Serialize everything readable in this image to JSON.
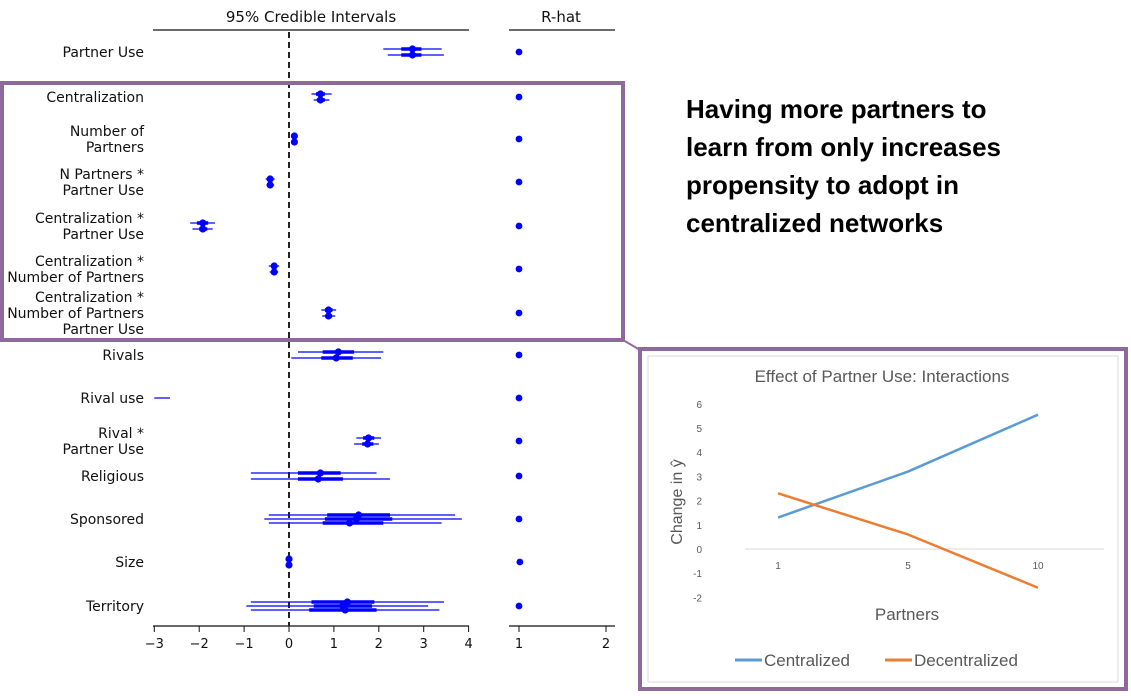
{
  "callout": {
    "line1": "Having more partners to",
    "line2": "learn from only increases",
    "line3": "propensity to adopt in",
    "line4": "centralized networks"
  },
  "chart_data": [
    {
      "type": "forest",
      "panel_title": "95% Credible Intervals",
      "xlim": [
        -3,
        4.2
      ],
      "xticks": [
        "−3",
        "−2",
        "−1",
        "0",
        "1",
        "2",
        "3",
        "4"
      ],
      "xtick_values": [
        -3,
        -2,
        -1,
        0,
        1,
        2,
        3,
        4
      ],
      "reference_line": 0,
      "marker_color": "#0000ff",
      "rows": [
        {
          "label": [
            "Partner Use"
          ],
          "ci": [
            [
              2.1,
              3.4
            ],
            [
              2.2,
              3.45
            ]
          ],
          "iqr": [
            [
              2.5,
              2.95
            ],
            [
              2.5,
              2.95
            ]
          ],
          "means": [
            2.75,
            2.75
          ]
        },
        {
          "label": [
            "Centralization"
          ],
          "ci": [
            [
              0.5,
              0.95
            ],
            [
              0.55,
              0.9
            ]
          ],
          "iqr": [
            [
              0.6,
              0.8
            ],
            [
              0.62,
              0.8
            ]
          ],
          "means": [
            0.7,
            0.7
          ]
        },
        {
          "label": [
            "Number of",
            "Partners"
          ],
          "ci": [
            [
              0.05,
              0.18
            ],
            [
              0.07,
              0.17
            ]
          ],
          "iqr": [
            [
              0.08,
              0.15
            ],
            [
              0.09,
              0.15
            ]
          ],
          "means": [
            0.12,
            0.12
          ]
        },
        {
          "label": [
            "N Partners *",
            "Partner Use"
          ],
          "ci": [
            [
              -0.52,
              -0.32
            ],
            [
              -0.5,
              -0.33
            ]
          ],
          "iqr": [
            [
              -0.47,
              -0.37
            ],
            [
              -0.46,
              -0.38
            ]
          ],
          "means": [
            -0.42,
            -0.42
          ]
        },
        {
          "label": [
            "Centralization *",
            "Partner Use"
          ],
          "ci": [
            [
              -2.2,
              -1.65
            ],
            [
              -2.15,
              -1.7
            ]
          ],
          "iqr": [
            [
              -2.05,
              -1.8
            ],
            [
              -2.0,
              -1.82
            ]
          ],
          "means": [
            -1.92,
            -1.92
          ]
        },
        {
          "label": [
            "Centralization *",
            "Number of Partners"
          ],
          "ci": [
            [
              -0.45,
              -0.22
            ],
            [
              -0.43,
              -0.24
            ]
          ],
          "iqr": [
            [
              -0.38,
              -0.28
            ],
            [
              -0.37,
              -0.29
            ]
          ],
          "means": [
            -0.33,
            -0.33
          ]
        },
        {
          "label": [
            "Centralization *",
            "Number of Partners",
            "Partner Use"
          ],
          "ci": [
            [
              0.72,
              1.05
            ],
            [
              0.74,
              1.03
            ]
          ],
          "iqr": [
            [
              0.8,
              0.97
            ],
            [
              0.82,
              0.96
            ]
          ],
          "means": [
            0.88,
            0.88
          ]
        },
        {
          "label": [
            "Rivals"
          ],
          "ci": [
            [
              0.2,
              2.1
            ],
            [
              0.05,
              2.05
            ]
          ],
          "iqr": [
            [
              0.75,
              1.45
            ],
            [
              0.72,
              1.42
            ]
          ],
          "means": [
            1.1,
            1.05
          ]
        },
        {
          "label": [
            "Rival use"
          ],
          "ci": [
            [
              -2.65,
              -3.0
            ]
          ],
          "iqr": [],
          "means": []
        },
        {
          "label": [
            "Rival *",
            "Partner Use"
          ],
          "ci": [
            [
              1.5,
              2.05
            ],
            [
              1.45,
              2.0
            ]
          ],
          "iqr": [
            [
              1.65,
              1.9
            ],
            [
              1.63,
              1.88
            ]
          ],
          "means": [
            1.77,
            1.75
          ]
        },
        {
          "label": [
            "Religious"
          ],
          "ci": [
            [
              -0.85,
              1.95
            ],
            [
              -0.85,
              2.25
            ]
          ],
          "iqr": [
            [
              0.2,
              1.15
            ],
            [
              0.2,
              1.2
            ]
          ],
          "means": [
            0.7,
            0.65
          ]
        },
        {
          "label": [
            "Sponsored"
          ],
          "ci": [
            [
              -0.45,
              3.7
            ],
            [
              -0.55,
              3.85
            ],
            [
              -0.45,
              3.4
            ]
          ],
          "iqr": [
            [
              0.85,
              2.25
            ],
            [
              0.8,
              2.3
            ],
            [
              0.75,
              2.1
            ]
          ],
          "means": [
            1.55,
            1.5,
            1.35
          ]
        },
        {
          "label": [
            "Size"
          ],
          "ci": [
            [
              -0.06,
              0.06
            ],
            [
              -0.05,
              0.05
            ]
          ],
          "iqr": [
            [
              -0.04,
              0.04
            ],
            [
              -0.04,
              0.04
            ]
          ],
          "means": [
            0.0,
            0.0
          ]
        },
        {
          "label": [
            "Territory"
          ],
          "ci": [
            [
              -0.85,
              3.45
            ],
            [
              -0.95,
              3.1
            ],
            [
              -0.85,
              3.35
            ]
          ],
          "iqr": [
            [
              0.5,
              1.9
            ],
            [
              0.55,
              1.85
            ],
            [
              0.45,
              1.95
            ]
          ],
          "means": [
            1.3,
            1.2,
            1.25
          ]
        }
      ]
    },
    {
      "type": "scatter",
      "panel_title": "R-hat",
      "xlim": [
        0.9,
        2.1
      ],
      "xticks": [
        "1",
        "2"
      ],
      "xtick_values": [
        1,
        2
      ],
      "values": [
        1,
        1,
        1,
        1,
        1,
        1,
        1,
        1,
        1,
        1,
        1,
        1,
        1.01,
        1
      ]
    },
    {
      "type": "line",
      "title": "Effect of Partner Use: Interactions",
      "xlabel": "Partners",
      "ylabel": "Change in ŷ",
      "categories": [
        "1",
        "5",
        "10"
      ],
      "ylim": [
        -2,
        6
      ],
      "yticks": [
        "6",
        "5",
        "4",
        "3",
        "2",
        "1",
        "0",
        "-1",
        "-2"
      ],
      "ytick_values": [
        6,
        5,
        4,
        3,
        2,
        1,
        0,
        -1,
        -2
      ],
      "series": [
        {
          "name": "Centralized",
          "color": "#5b9bd5",
          "values": [
            1.3,
            3.2,
            5.55
          ]
        },
        {
          "name": "Decentralized",
          "color": "#ed7d31",
          "values": [
            2.3,
            0.6,
            -1.6
          ]
        }
      ],
      "legend": "bottom"
    }
  ]
}
